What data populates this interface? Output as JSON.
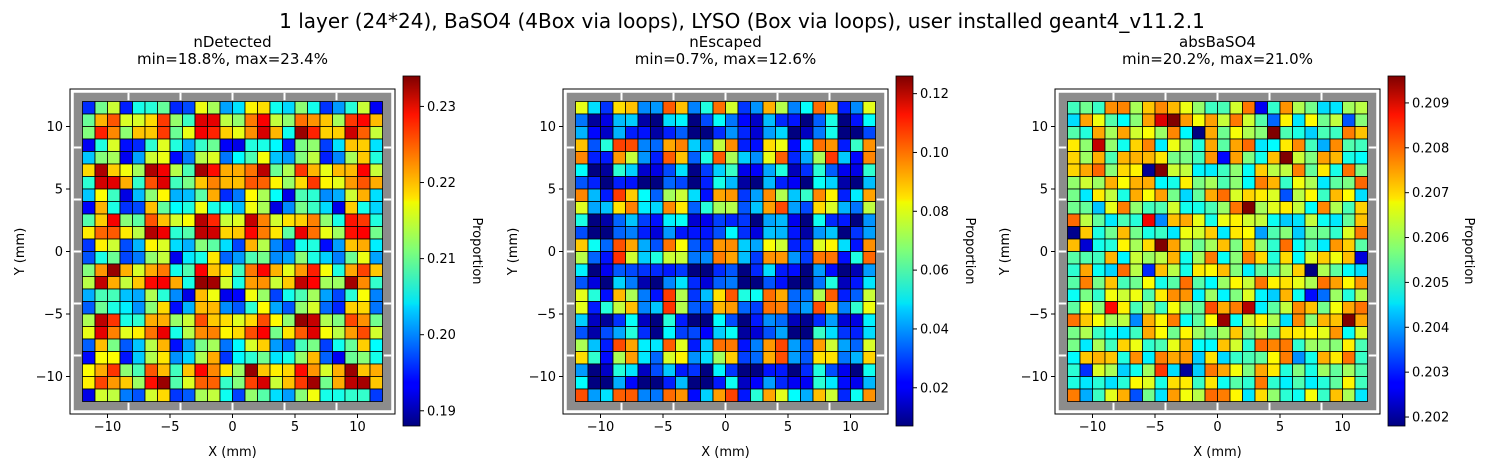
{
  "figure": {
    "suptitle": "1 layer (24*24), BaSO4 (4Box via loops), LYSO (Box via loops), user installed geant4_v11.2.1"
  },
  "chart_data": [
    {
      "type": "heatmap",
      "title": "nDetected",
      "subtitle": "min=18.8%, max=23.4%",
      "xlabel": "X (mm)",
      "ylabel": "Y (mm)",
      "xlim": [
        -13,
        13
      ],
      "ylim": [
        -13,
        13
      ],
      "x_ticks": [
        -10,
        -5,
        0,
        5,
        10
      ],
      "y_ticks": [
        -10,
        -5,
        0,
        5,
        10
      ],
      "colorbar_label": "Proportion",
      "colorbar_range": [
        0.188,
        0.234
      ],
      "colorbar_ticks": [
        0.19,
        0.2,
        0.21,
        0.22,
        0.23
      ],
      "colormap": "jet",
      "grid_size": 24,
      "seed": 11
    },
    {
      "type": "heatmap",
      "title": "nEscaped",
      "subtitle": "min=0.7%, max=12.6%",
      "xlabel": "X (mm)",
      "ylabel": "Y (mm)",
      "xlim": [
        -13,
        13
      ],
      "ylim": [
        -13,
        13
      ],
      "x_ticks": [
        -10,
        -5,
        0,
        5,
        10
      ],
      "y_ticks": [
        -10,
        -5,
        0,
        5,
        10
      ],
      "colorbar_label": "Proportion",
      "colorbar_range": [
        0.007,
        0.126
      ],
      "colorbar_ticks": [
        0.02,
        0.04,
        0.06,
        0.08,
        0.1,
        0.12
      ],
      "colormap": "jet",
      "grid_size": 24,
      "seed": 23
    },
    {
      "type": "heatmap",
      "title": "absBaSO4",
      "subtitle": "min=20.2%, max=21.0%",
      "xlabel": "X (mm)",
      "ylabel": "Y (mm)",
      "xlim": [
        -13,
        13
      ],
      "ylim": [
        -13,
        13
      ],
      "x_ticks": [
        -10,
        -5,
        0,
        5,
        10
      ],
      "y_ticks": [
        -10,
        -5,
        0,
        5,
        10
      ],
      "colorbar_label": "Proportion",
      "colorbar_range": [
        0.2018,
        0.2096
      ],
      "colorbar_ticks": [
        0.202,
        0.203,
        0.204,
        0.205,
        0.206,
        0.207,
        0.208,
        0.209
      ],
      "colormap": "jet",
      "grid_size": 24,
      "seed": 37
    }
  ]
}
